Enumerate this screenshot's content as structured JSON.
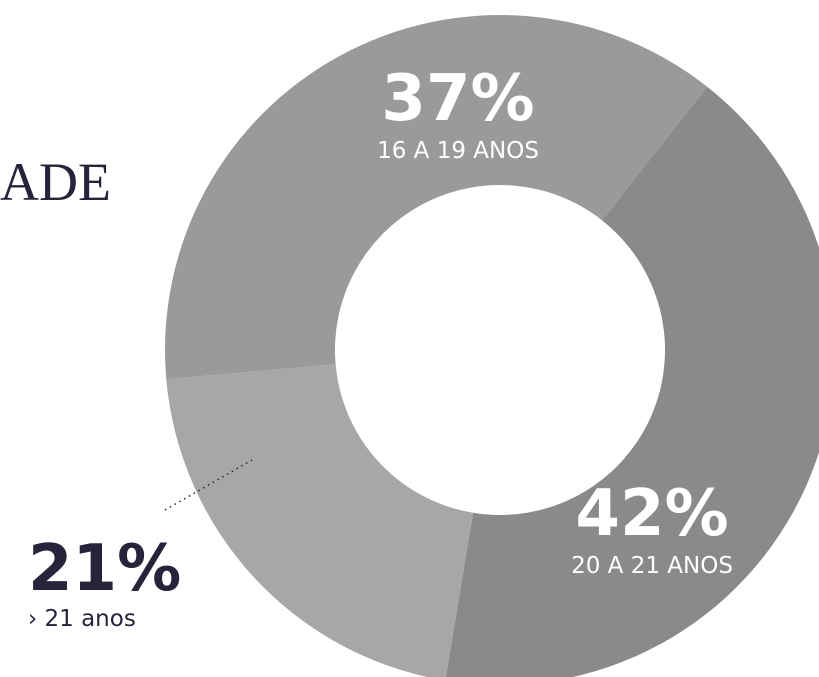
{
  "chart_data": {
    "type": "pie",
    "donut": true,
    "title": "ADE",
    "categories": [
      "16 A 19 ANOS",
      "20 A 21 ANOS",
      "› 21 anos"
    ],
    "values": [
      37,
      42,
      21
    ],
    "value_labels": [
      "37%",
      "42%",
      "21%"
    ],
    "colors": [
      "#9a9a9a",
      "#8a8a8a",
      "#a7a7a7"
    ]
  }
}
